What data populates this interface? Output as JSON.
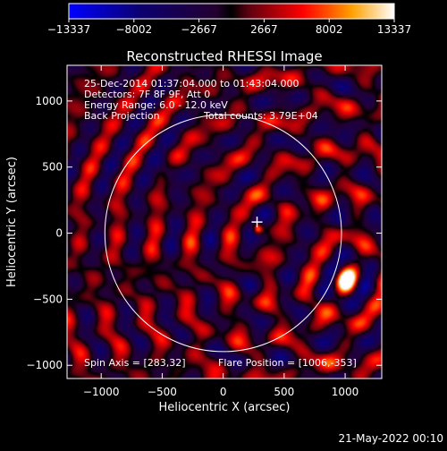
{
  "chart_data": {
    "type": "heatmap",
    "title": "Reconstructed RHESSI Image",
    "xlabel": "Heliocentric X (arcsec)",
    "ylabel": "Heliocentric Y (arcsec)",
    "xlim": [
      -1280,
      1300
    ],
    "ylim": [
      -1100,
      1270
    ],
    "xticks": [
      -1000,
      -500,
      0,
      500,
      1000
    ],
    "yticks": [
      -1000,
      -500,
      0,
      500,
      1000
    ],
    "xticklabels": [
      "−1000",
      "−500",
      "0",
      "500",
      "1000"
    ],
    "yticklabels": [
      "−1000",
      "−500",
      "0",
      "500",
      "1000"
    ],
    "colorbar": {
      "min": -13337,
      "max": 13337,
      "ticks": [
        -13337,
        -8002,
        -2667,
        2667,
        8002,
        13337
      ],
      "ticklabels": [
        "−13337",
        "−8002",
        "−2667",
        "2667",
        "8002",
        "13337"
      ]
    },
    "solar_disk_radius_arcsec": 970,
    "sun_center": [
      0,
      0
    ],
    "flare_position": [
      1006,
      -353
    ],
    "bright_sources": [
      {
        "x": 1010,
        "y": -350,
        "amplitude": 13337
      },
      {
        "x": 285,
        "y": 30,
        "amplitude": 9000
      }
    ],
    "annotations": {
      "time_range": "25-Dec-2014 01:37:04.000 to 01:43:04.000",
      "detectors": "Detectors: 7F 8F 9F, Att 0",
      "energy": "Energy Range: 6.0 - 12.0 keV",
      "method": "Back Projection",
      "counts": "Total counts: 3.79E+04",
      "spin_axis": "Spin Axis = [283,32]",
      "flare_pos": "Flare Position = [1006,-353]"
    }
  },
  "timestamp": "21-May-2022 00:10"
}
